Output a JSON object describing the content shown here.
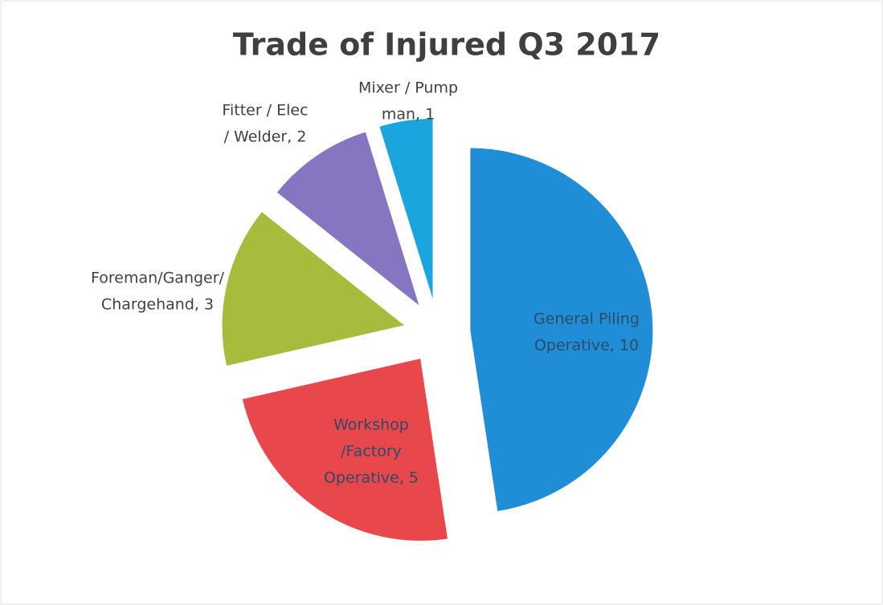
{
  "chart_data": {
    "type": "pie",
    "title": "Trade of Injured Q3 2017",
    "values": [
      10,
      5,
      3,
      2,
      1
    ],
    "value_labels": [
      [
        "General Piling",
        "Operative, 10"
      ],
      [
        "Workshop",
        "/Factory",
        "Operative, 5"
      ],
      [
        "Foreman/Ganger/",
        "Chargehand, 3"
      ],
      [
        "Fitter / Elec",
        "/ Welder, 2"
      ],
      [
        "Mixer / Pump",
        "man, 1"
      ]
    ],
    "colors": [
      "#1f8ed6",
      "#e8474b",
      "#a7bb3c",
      "#8676c2",
      "#1ba5de"
    ]
  }
}
